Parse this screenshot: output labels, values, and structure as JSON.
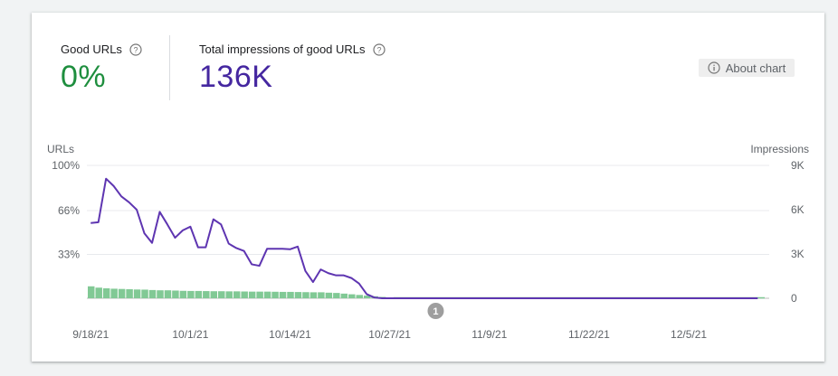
{
  "metrics": [
    {
      "label": "Good URLs",
      "value": "0%",
      "color": "#1e8e3e"
    },
    {
      "label": "Total impressions of good URLs",
      "value": "136K",
      "color": "#4527a0"
    }
  ],
  "about_chart": {
    "label": "About chart",
    "icon": "info-icon"
  },
  "chart_data": {
    "type": "bar",
    "left_axis": {
      "title": "URLs",
      "ticks": [
        "100%",
        "66%",
        "33%",
        ""
      ],
      "tick_values": [
        100,
        66,
        33,
        0
      ],
      "range": [
        0,
        100
      ]
    },
    "right_axis": {
      "title": "Impressions",
      "ticks": [
        "9K",
        "6K",
        "3K",
        "0"
      ],
      "tick_values": [
        9000,
        6000,
        3000,
        0
      ],
      "range": [
        0,
        9000
      ]
    },
    "x_tick_labels": [
      "9/18/21",
      "10/1/21",
      "10/14/21",
      "10/27/21",
      "11/9/21",
      "11/22/21",
      "12/5/21"
    ],
    "x_tick_days": [
      0,
      13,
      26,
      39,
      52,
      65,
      78
    ],
    "day_count": 89,
    "series": [
      {
        "name": "Good URLs",
        "kind": "bar",
        "axis": "left",
        "color": "#81c995",
        "values": [
          9,
          8,
          7.5,
          7.2,
          7,
          6.8,
          6.6,
          6.5,
          6.2,
          6,
          6,
          5.8,
          5.6,
          5.5,
          5.5,
          5.4,
          5.3,
          5.3,
          5.2,
          5.2,
          5.1,
          5,
          5,
          5,
          4.9,
          4.8,
          4.8,
          4.7,
          4.6,
          4.5,
          4.5,
          4.2,
          4,
          3.5,
          3,
          2.5,
          2,
          1.5,
          1,
          0.5
        ]
      },
      {
        "name": "Impressions",
        "kind": "line",
        "axis": "right",
        "color": "#5e35b1",
        "values": [
          5100,
          5150,
          8100,
          7600,
          6900,
          6500,
          6000,
          4400,
          3750,
          5850,
          5000,
          4100,
          4600,
          4850,
          3450,
          3450,
          5350,
          5000,
          3700,
          3400,
          3200,
          2300,
          2200,
          3350,
          3350,
          3350,
          3320,
          3500,
          1850,
          1100,
          1950,
          1700,
          1550,
          1550,
          1370,
          1000,
          280,
          50,
          0,
          0
        ]
      }
    ],
    "annotation": {
      "label": "1",
      "day": 45,
      "color": "#9e9e9e"
    },
    "grid": true
  }
}
